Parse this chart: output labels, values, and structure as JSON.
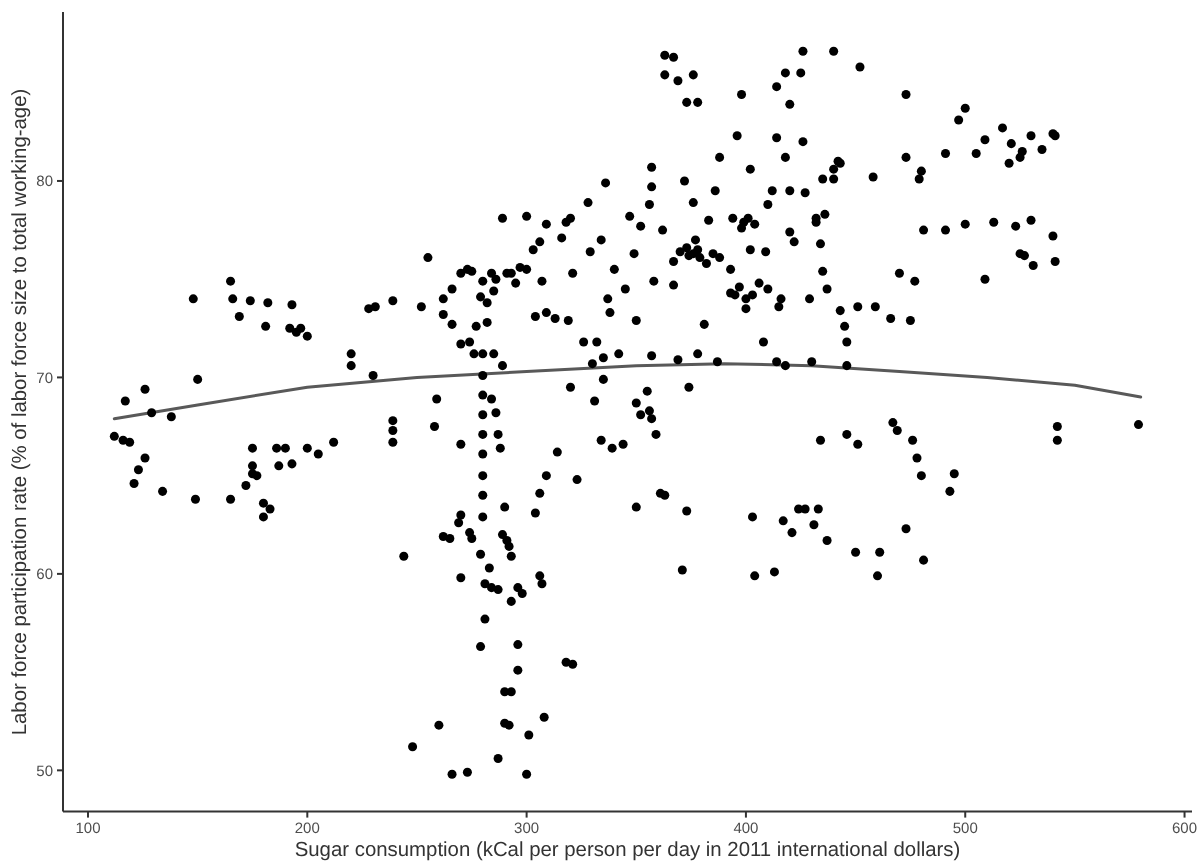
{
  "chart_data": {
    "type": "scatter",
    "xlabel": "Sugar consumption (kCal per person per day in 2011 international dollars)",
    "ylabel": "Labor force participation rate (% of labor force size to total working-age)",
    "xlim": [
      88.6,
      603.4
    ],
    "ylim": [
      47.9,
      88.6
    ],
    "xticks": [
      100,
      200,
      300,
      400,
      500,
      600
    ],
    "yticks": [
      50,
      60,
      70,
      80
    ],
    "series": [
      {
        "color": "#000000",
        "marker": "circle",
        "x": [
          112,
          116,
          119,
          117,
          121,
          123,
          126,
          126,
          129,
          134,
          138,
          148,
          150,
          149,
          165,
          166,
          165,
          169,
          174,
          172,
          175,
          175,
          175,
          177,
          180,
          180,
          183,
          182,
          181,
          186,
          187,
          190,
          193,
          192,
          195,
          197,
          193,
          200,
          200,
          205,
          212,
          220,
          220,
          228,
          231,
          230,
          239,
          239,
          239,
          239,
          244,
          248,
          252,
          255,
          258,
          259,
          260,
          262,
          262,
          262,
          265,
          266,
          266,
          266,
          270,
          270,
          270,
          269,
          270,
          270,
          273,
          273,
          275,
          274,
          274,
          275,
          276,
          277,
          279,
          280,
          280,
          280,
          280,
          280,
          280,
          280,
          280,
          280,
          280,
          279,
          279,
          281,
          281,
          283,
          284,
          287,
          287,
          282,
          282,
          284,
          285,
          285,
          284,
          286,
          287,
          288,
          289,
          289,
          290,
          290,
          292,
          290,
          293,
          289,
          291,
          293,
          291,
          292,
          293,
          293,
          296,
          296,
          296,
          298,
          300,
          301,
          300,
          300,
          303,
          304,
          304,
          306,
          306,
          307,
          308,
          307,
          306,
          309,
          309,
          309,
          314,
          318,
          321,
          318,
          320,
          319,
          321,
          323,
          320,
          326,
          328,
          329,
          330,
          331,
          332,
          336,
          337,
          338,
          335,
          335,
          334,
          339,
          340,
          342,
          344,
          347,
          349,
          350,
          350,
          350,
          352,
          352,
          355,
          356,
          357,
          356,
          357,
          357,
          357,
          358,
          359,
          361,
          363,
          363,
          367,
          363,
          369,
          373,
          376,
          378,
          371,
          373,
          374,
          369,
          367,
          367,
          370,
          373,
          376,
          378,
          372,
          376,
          377,
          378,
          381,
          383,
          385,
          388,
          387,
          386,
          388,
          393,
          395,
          396,
          398,
          394,
          399,
          400,
          400,
          402,
          402,
          404,
          403,
          404,
          406,
          410,
          409,
          408,
          410,
          412,
          414,
          414,
          414,
          413,
          415,
          416,
          418,
          418,
          417,
          420,
          420,
          420,
          418,
          421,
          422,
          425,
          426,
          426,
          427,
          424,
          427,
          429,
          430,
          431,
          432,
          435,
          433,
          434,
          434,
          435,
          437,
          437,
          440,
          440,
          442,
          443,
          445,
          446,
          446,
          446,
          450,
          451,
          452,
          451,
          458,
          459,
          460,
          461,
          466,
          467,
          469,
          470,
          473,
          473,
          473,
          475,
          476,
          477,
          478,
          479,
          480,
          480,
          481,
          481,
          491,
          491,
          493,
          495,
          497,
          500,
          500,
          505,
          509,
          509,
          513,
          517,
          521,
          520,
          525,
          526,
          523,
          525,
          527,
          530,
          531,
          530,
          535,
          540,
          541,
          540,
          541,
          542,
          542,
          579,
          398,
          401,
          393,
          397,
          403,
          374,
          379,
          432,
          436,
          440,
          443,
          286,
          295,
          297,
          313,
          316,
          334,
          345,
          362,
          382
        ],
        "values": [
          67.0,
          66.8,
          66.7,
          68.8,
          64.6,
          65.3,
          65.9,
          69.4,
          68.2,
          64.2,
          68.0,
          74.0,
          69.9,
          63.8,
          74.9,
          74.0,
          63.8,
          73.1,
          73.9,
          64.5,
          65.5,
          66.4,
          65.1,
          65.0,
          63.6,
          62.9,
          63.3,
          73.8,
          72.6,
          66.4,
          65.5,
          66.4,
          73.7,
          72.5,
          72.3,
          72.5,
          65.6,
          72.1,
          66.4,
          66.1,
          66.7,
          71.2,
          70.6,
          73.5,
          73.6,
          70.1,
          73.9,
          67.8,
          67.3,
          66.7,
          60.9,
          51.2,
          73.6,
          76.1,
          67.5,
          68.9,
          52.3,
          74.0,
          73.2,
          61.9,
          61.8,
          72.7,
          74.5,
          49.8,
          75.3,
          71.7,
          66.6,
          62.6,
          63.0,
          59.8,
          49.9,
          75.5,
          75.4,
          71.8,
          62.1,
          61.8,
          71.2,
          72.6,
          74.1,
          74.9,
          71.2,
          70.1,
          69.1,
          68.1,
          67.1,
          66.1,
          65.0,
          64.0,
          62.9,
          61.0,
          56.3,
          57.7,
          59.5,
          60.3,
          59.3,
          59.2,
          50.6,
          73.8,
          72.8,
          75.3,
          74.4,
          71.2,
          68.9,
          68.2,
          67.1,
          66.4,
          78.1,
          62.0,
          63.4,
          52.4,
          52.3,
          54.0,
          54.0,
          70.6,
          75.3,
          75.3,
          61.7,
          61.4,
          58.6,
          60.9,
          59.3,
          55.1,
          56.4,
          59.0,
          49.8,
          51.8,
          78.2,
          75.5,
          76.5,
          73.1,
          63.1,
          64.1,
          59.9,
          59.5,
          52.7,
          74.9,
          76.9,
          77.8,
          73.3,
          65.0,
          66.2,
          55.5,
          55.4,
          77.9,
          78.1,
          72.9,
          75.3,
          64.8,
          69.5,
          71.8,
          78.9,
          76.4,
          70.7,
          68.8,
          71.8,
          79.9,
          74.0,
          73.3,
          71.0,
          69.9,
          66.8,
          66.4,
          75.5,
          71.2,
          66.6,
          78.2,
          76.3,
          63.4,
          72.9,
          68.7,
          68.1,
          77.7,
          69.3,
          68.3,
          67.9,
          78.8,
          71.1,
          79.7,
          80.7,
          74.9,
          67.1,
          64.1,
          64.0,
          86.4,
          86.3,
          85.4,
          85.1,
          84.0,
          85.4,
          84.0,
          60.2,
          63.2,
          69.5,
          70.9,
          74.7,
          75.9,
          76.4,
          76.6,
          76.3,
          76.5,
          80.0,
          78.9,
          77.0,
          71.2,
          72.7,
          78.0,
          76.3,
          76.1,
          70.8,
          79.5,
          81.2,
          75.5,
          74.2,
          82.3,
          84.4,
          78.1,
          77.9,
          74.0,
          73.5,
          76.5,
          80.6,
          77.8,
          62.9,
          59.9,
          74.8,
          74.5,
          76.4,
          71.8,
          78.8,
          79.5,
          70.8,
          84.8,
          82.2,
          60.1,
          73.6,
          74.0,
          70.6,
          81.2,
          62.7,
          77.4,
          79.5,
          83.9,
          85.5,
          62.1,
          76.9,
          85.5,
          86.6,
          82.0,
          79.4,
          63.3,
          63.3,
          74.0,
          70.8,
          62.5,
          78.1,
          80.1,
          63.3,
          66.8,
          76.8,
          75.4,
          74.5,
          61.7,
          80.1,
          86.6,
          81.0,
          73.4,
          72.6,
          71.8,
          70.6,
          67.1,
          61.1,
          66.6,
          85.8,
          73.6,
          80.2,
          73.6,
          59.9,
          61.1,
          73.0,
          67.7,
          67.3,
          75.3,
          84.4,
          81.2,
          62.3,
          72.9,
          66.8,
          74.9,
          65.9,
          80.1,
          80.5,
          65.0,
          60.7,
          77.5,
          81.4,
          77.5,
          64.2,
          65.1,
          83.1,
          83.7,
          77.8,
          81.4,
          82.1,
          75.0,
          77.9,
          82.7,
          81.9,
          80.9,
          81.2,
          81.5,
          77.7,
          76.3,
          76.2,
          78.0,
          75.7,
          82.3,
          81.6,
          82.4,
          82.3,
          77.2,
          75.9,
          67.5,
          66.8,
          67.6,
          77.6,
          78.1,
          74.3,
          74.6,
          74.2,
          76.2,
          76.1,
          77.9,
          78.3,
          80.6,
          80.9,
          75.0,
          74.8,
          75.6,
          73.0,
          77.1,
          77.0,
          74.5,
          77.5,
          75.8
        ]
      },
      {
        "type": "line",
        "color": "#595959",
        "marker": "none",
        "x": [
          112,
          150,
          200,
          250,
          300,
          350,
          390,
          430,
          470,
          510,
          550,
          580
        ],
        "values": [
          67.9,
          68.6,
          69.5,
          70.0,
          70.3,
          70.6,
          70.7,
          70.6,
          70.3,
          70.0,
          69.6,
          69.0
        ]
      }
    ]
  }
}
